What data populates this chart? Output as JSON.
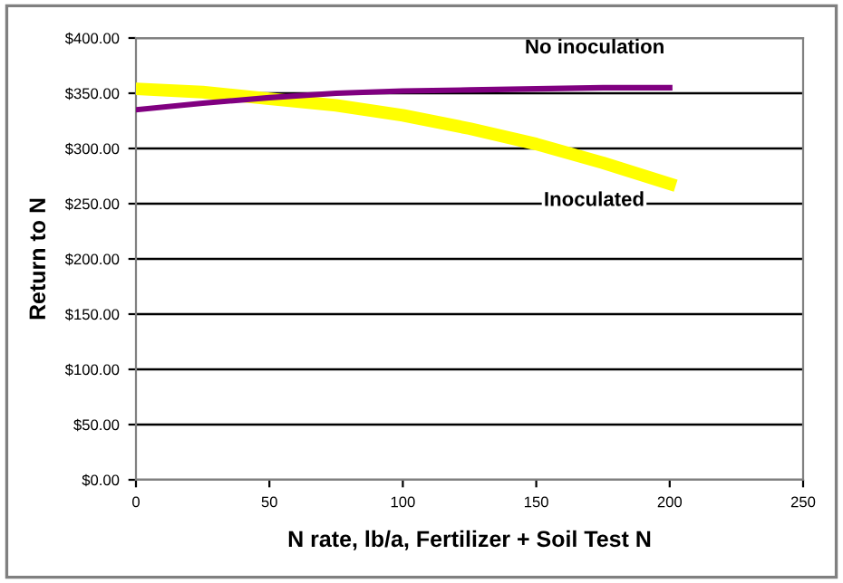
{
  "chart_data": {
    "type": "line",
    "xlabel": "N rate, lb/a, Fertilizer + Soil Test N",
    "ylabel": "Return to N",
    "x": [
      0,
      25,
      50,
      75,
      100,
      125,
      150,
      175,
      200
    ],
    "series": [
      {
        "name": "No inoculation",
        "color": "#800080",
        "values": [
          335,
          341,
          346,
          350,
          352,
          353,
          354,
          355,
          355
        ]
      },
      {
        "name": "Inoculated",
        "color": "#ffff00",
        "values": [
          354,
          351,
          345,
          339,
          330,
          318,
          304,
          287,
          268
        ]
      }
    ],
    "xlim": [
      0,
      250
    ],
    "xticks": [
      0,
      50,
      100,
      150,
      200,
      250
    ],
    "ylim": [
      0,
      400
    ],
    "yticks": [
      {
        "value": 0,
        "label": "$0.00"
      },
      {
        "value": 50,
        "label": "$50.00"
      },
      {
        "value": 100,
        "label": "$100.00"
      },
      {
        "value": 150,
        "label": "$150.00"
      },
      {
        "value": 200,
        "label": "$200.00"
      },
      {
        "value": 250,
        "label": "$250.00"
      },
      {
        "value": 300,
        "label": "$300.00"
      },
      {
        "value": 350,
        "label": "$350.00"
      },
      {
        "value": 400,
        "label": "$400.00"
      }
    ],
    "grid": "y",
    "legend": false,
    "marker": "none",
    "line_style": "solid"
  }
}
